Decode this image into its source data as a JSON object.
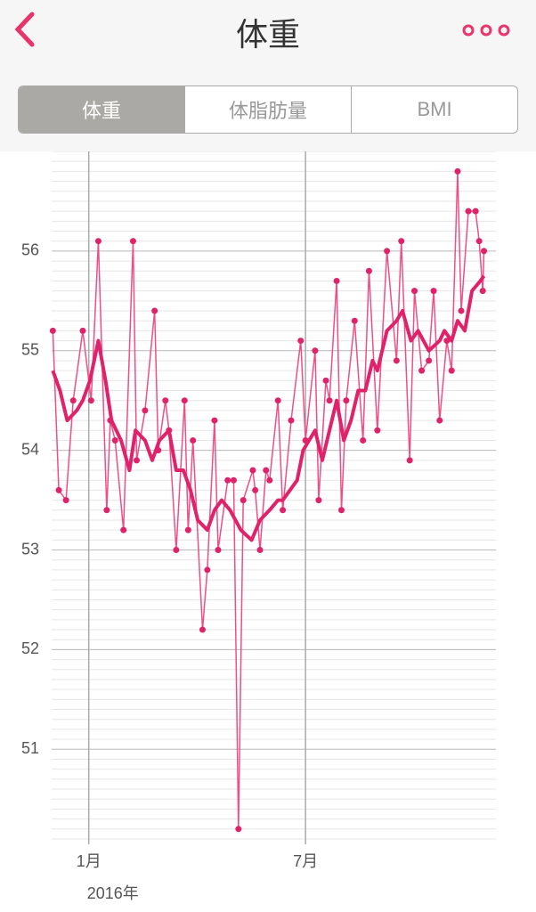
{
  "header": {
    "title": "体重"
  },
  "tabs": [
    "体重",
    "体脂肪量",
    "BMI"
  ],
  "chart_data": {
    "type": "line",
    "xlim": [
      -31,
      340
    ],
    "xticks": [
      {
        "value": 0,
        "label": "1月"
      },
      {
        "value": 181,
        "label": "7月"
      }
    ],
    "x_sublabel": "2016年",
    "ylim": [
      50.1,
      57
    ],
    "yticks": [
      51,
      52,
      53,
      54,
      55,
      56
    ],
    "minor_grid_step": 0.1,
    "grid": true,
    "series": [
      {
        "color": "#ef4f88",
        "markers": true,
        "width": 1.5,
        "x": [
          -30,
          -25,
          -19,
          -13,
          -5,
          2,
          8,
          15,
          18,
          22,
          29,
          37,
          40,
          47,
          55,
          58,
          64,
          67,
          73,
          80,
          83,
          87,
          95,
          99,
          105,
          108,
          116,
          121,
          125,
          129,
          137,
          139,
          143,
          148,
          151,
          158,
          162,
          169,
          177,
          181,
          189,
          192,
          198,
          201,
          207,
          211,
          215,
          222,
          229,
          234,
          241,
          249,
          257,
          261,
          268,
          272,
          278,
          284,
          288,
          293,
          299,
          303,
          308,
          311,
          317,
          323,
          326,
          329,
          330
        ],
        "values": [
          55.2,
          53.6,
          53.5,
          54.5,
          55.2,
          54.5,
          56.1,
          53.4,
          54.3,
          54.1,
          53.2,
          56.1,
          53.9,
          54.4,
          55.4,
          54.0,
          54.5,
          54.2,
          53.0,
          54.5,
          53.2,
          54.1,
          52.2,
          52.8,
          54.3,
          53.0,
          53.7,
          53.7,
          50.2,
          53.5,
          53.8,
          53.6,
          53.0,
          53.8,
          53.7,
          54.5,
          53.4,
          54.3,
          55.1,
          54.1,
          55.0,
          53.5,
          54.7,
          54.5,
          55.7,
          53.4,
          54.5,
          55.3,
          54.1,
          55.8,
          54.2,
          56.0,
          54.9,
          56.1,
          53.9,
          55.6,
          54.8,
          54.9,
          55.6,
          54.3,
          55.1,
          54.8,
          56.8,
          55.4,
          56.4,
          56.4,
          56.1,
          55.6,
          56.0
        ]
      },
      {
        "color": "#e0226a",
        "markers": false,
        "width": 4,
        "x": [
          -30,
          -24,
          -18,
          -10,
          -5,
          1,
          8,
          14,
          19,
          27,
          34,
          39,
          47,
          53,
          59,
          67,
          73,
          79,
          85,
          91,
          99,
          105,
          111,
          118,
          127,
          136,
          143,
          151,
          158,
          162,
          168,
          174,
          179,
          189,
          195,
          201,
          207,
          213,
          219,
          225,
          231,
          237,
          241,
          249,
          257,
          262,
          269,
          275,
          284,
          293,
          297,
          303,
          308,
          314,
          320,
          327,
          330
        ],
        "values": [
          54.8,
          54.6,
          54.3,
          54.4,
          54.5,
          54.7,
          55.1,
          54.7,
          54.3,
          54.1,
          53.8,
          54.2,
          54.1,
          53.9,
          54.1,
          54.2,
          53.8,
          53.8,
          53.6,
          53.3,
          53.2,
          53.4,
          53.5,
          53.4,
          53.2,
          53.1,
          53.3,
          53.4,
          53.5,
          53.5,
          53.6,
          53.7,
          54.0,
          54.2,
          53.9,
          54.2,
          54.5,
          54.1,
          54.3,
          54.6,
          54.6,
          54.9,
          54.8,
          55.2,
          55.3,
          55.4,
          55.1,
          55.2,
          55.0,
          55.1,
          55.2,
          55.1,
          55.3,
          55.2,
          55.6,
          55.7,
          55.75
        ]
      }
    ]
  }
}
